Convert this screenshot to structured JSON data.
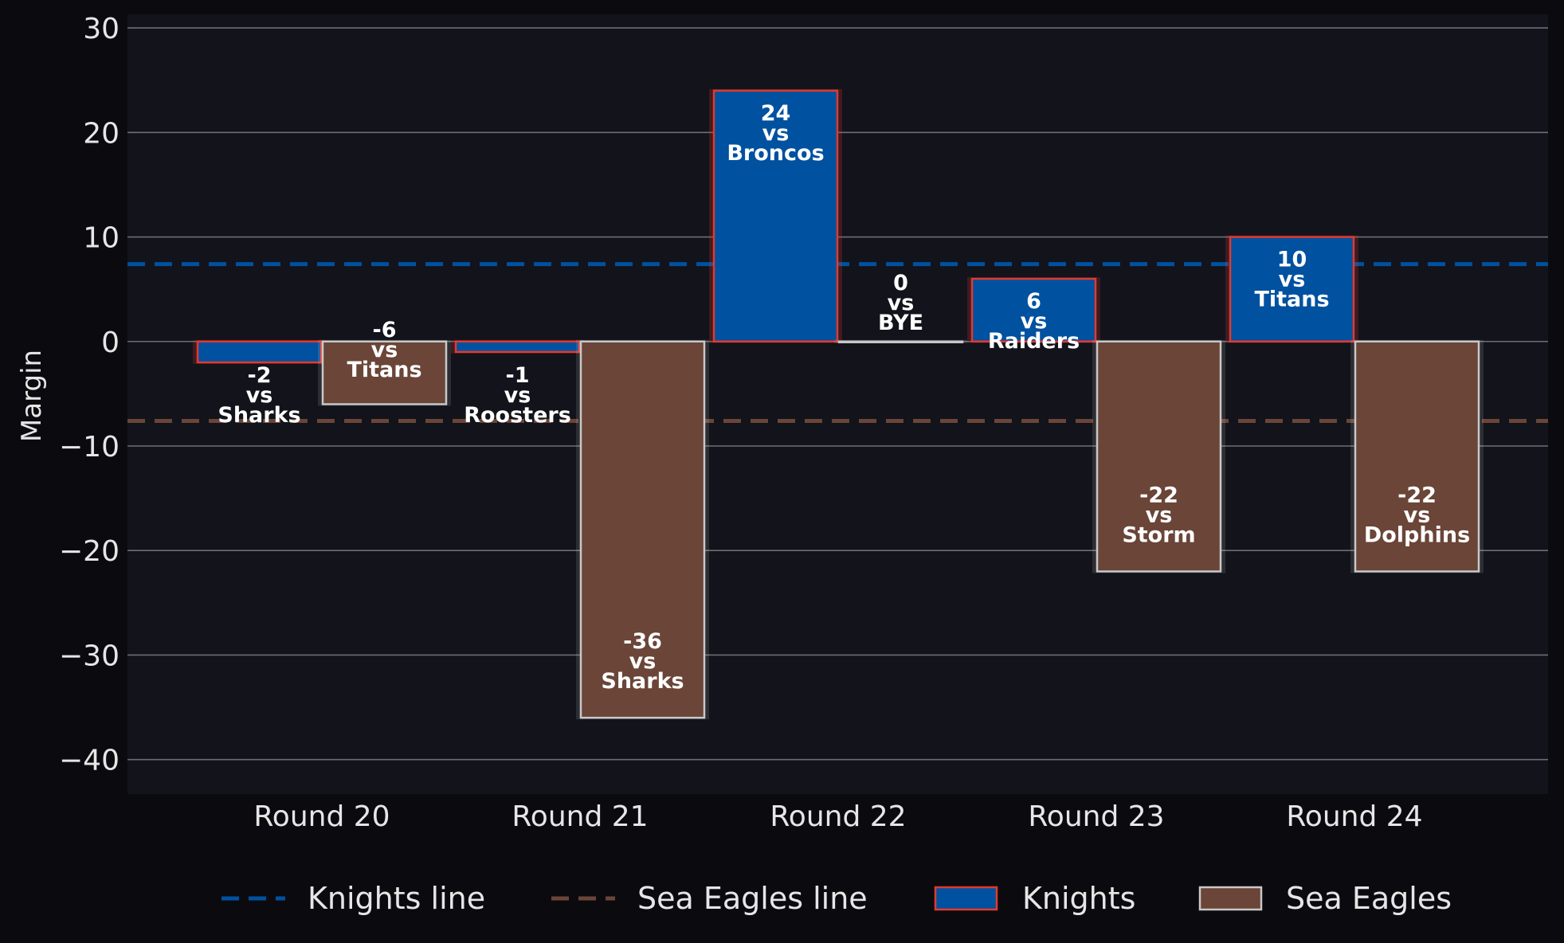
{
  "chart_data": {
    "type": "bar",
    "categories": [
      "Round 20",
      "Round 21",
      "Round 22",
      "Round 23",
      "Round 24"
    ],
    "ylabel": "Margin",
    "xlabel": "",
    "ylim": [
      -43.3,
      31.3
    ],
    "yticks": [
      30,
      20,
      10,
      0,
      -10,
      -20,
      -30,
      -40
    ],
    "ytick_labels": [
      "30",
      "20",
      "10",
      "0",
      "−10",
      "−20",
      "−30",
      "−40"
    ],
    "grid": "horizontal",
    "legend_placement": "bottom-center",
    "series": [
      {
        "name": "Knights",
        "values": [
          -2,
          -1,
          24,
          6,
          10
        ],
        "opponents": [
          "Sharks",
          "Roosters",
          "Broncos",
          "Raiders",
          "Titans"
        ],
        "fill": "#0051a0",
        "edge": "#e03a2f"
      },
      {
        "name": "Sea Eagles",
        "values": [
          -6,
          -36,
          0,
          -22,
          -22
        ],
        "opponents": [
          "Titans",
          "Sharks",
          "BYE",
          "Storm",
          "Dolphins"
        ],
        "fill": "#6a4538",
        "edge": "#c8c8c8"
      }
    ],
    "reference_lines": [
      {
        "name": "Knights line",
        "value": 7.4,
        "color": "#0051a0"
      },
      {
        "name": "Sea Eagles line",
        "value": -7.6,
        "color": "#6a4538"
      }
    ],
    "label_joiner": "vs"
  }
}
